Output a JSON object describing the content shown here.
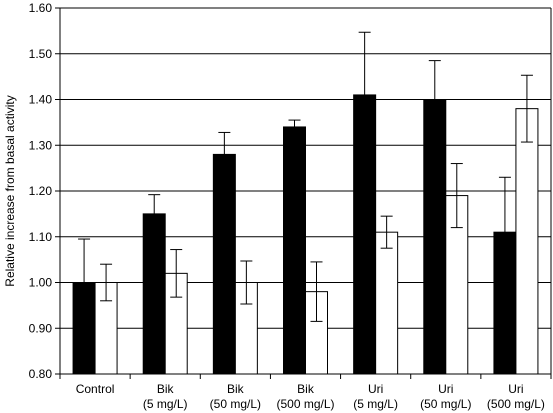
{
  "chart_data": {
    "type": "bar",
    "title": "",
    "xlabel": "",
    "ylabel": "Relative increase from basal activity",
    "ylim": [
      0.8,
      1.6
    ],
    "yticks": [
      "0.80",
      "0.90",
      "1.00",
      "1.10",
      "1.20",
      "1.30",
      "1.40",
      "1.50",
      "1.60"
    ],
    "grid": "horizontal",
    "categories": [
      [
        "Control"
      ],
      [
        "Bik",
        "(5 mg/L)"
      ],
      [
        "Bik",
        "(50 mg/L)"
      ],
      [
        "Bik",
        "(500 mg/L)"
      ],
      [
        "Uri",
        "(5 mg/L)"
      ],
      [
        "Uri",
        "(50 mg/L)"
      ],
      [
        "Uri",
        "(500 mg/L)"
      ]
    ],
    "series": [
      {
        "color": "#000000",
        "values": [
          1.0,
          1.15,
          1.28,
          1.34,
          1.41,
          1.4,
          1.11
        ],
        "error": [
          0.095,
          0.042,
          0.048,
          0.015,
          0.137,
          0.085,
          0.12
        ]
      },
      {
        "color": "#ffffff",
        "values": [
          1.0,
          1.02,
          1.0,
          0.98,
          1.11,
          1.19,
          1.38
        ],
        "error": [
          0.04,
          0.052,
          0.047,
          0.065,
          0.035,
          0.07,
          0.073
        ]
      }
    ]
  }
}
